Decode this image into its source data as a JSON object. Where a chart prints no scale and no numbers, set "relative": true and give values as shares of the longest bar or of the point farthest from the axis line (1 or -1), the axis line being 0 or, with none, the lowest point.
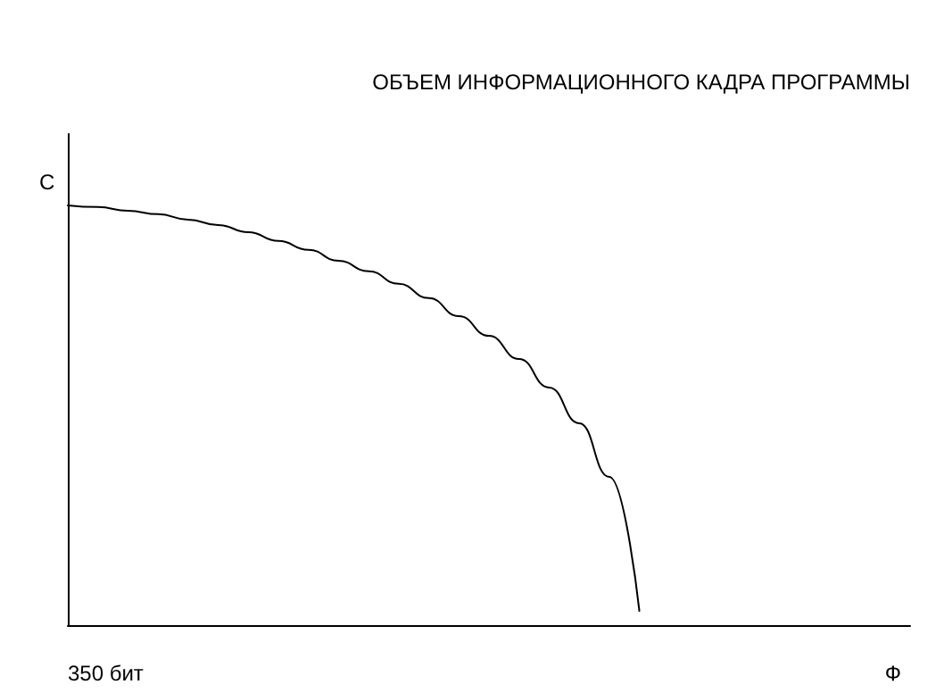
{
  "chart_data": {
    "type": "line",
    "title": "ОБЪЕМ ИНФОРМАЦИОННОГО КАДРА ПРОГРАММЫ",
    "xlabel": "Ф",
    "ylabel": "С",
    "annotations": [
      "350 бит"
    ],
    "relative": true,
    "grid": false,
    "marker": "none",
    "line_style": "solid",
    "categories": [
      null,
      null,
      null,
      null,
      null,
      null,
      null,
      null,
      null,
      null,
      null,
      null,
      null,
      null,
      null,
      null,
      null,
      null,
      null,
      null,
      null,
      null,
      null,
      null,
      null,
      null,
      null,
      null,
      null
    ],
    "series": [
      {
        "color": "#000000",
        "values": [
          1,
          0.996,
          0.987,
          0.979,
          0.966,
          0.953,
          0.936,
          0.915,
          0.894,
          0.868,
          0.843,
          0.813,
          0.779,
          0.736,
          0.689,
          0.634,
          0.566,
          0.481,
          0.353,
          0.034,
          null,
          null,
          null,
          null,
          null,
          null,
          null,
          null,
          null
        ]
      }
    ]
  }
}
